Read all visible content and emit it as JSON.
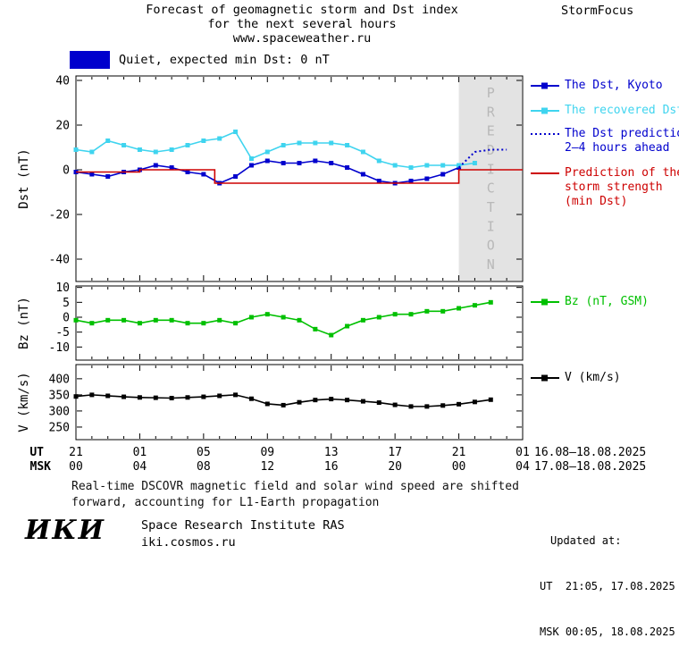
{
  "header": {
    "title_line1": "Forecast of geomagnetic storm and Dst index",
    "title_line2": "for the next several hours",
    "title_line3": "www.spaceweather.ru",
    "brand": "StormFocus"
  },
  "status": {
    "label": "Quiet, expected min Dst: 0 nT",
    "color": "#0000cd"
  },
  "chart_data": {
    "type": "line",
    "title": "Forecast of geomagnetic storm and Dst index for the next several hours",
    "x_hours_range": [
      0,
      28
    ],
    "x_major_hours": [
      0,
      4,
      8,
      12,
      16,
      20,
      24,
      28
    ],
    "x_axis": {
      "ut_label": "UT",
      "msk_label": "MSK",
      "ut_ticks": [
        "21",
        "01",
        "05",
        "09",
        "13",
        "17",
        "21",
        "01"
      ],
      "msk_ticks": [
        "00",
        "04",
        "08",
        "12",
        "16",
        "20",
        "00",
        "04"
      ],
      "ut_date_range": "16.08–18.08.2025",
      "msk_date_range": "17.08–18.08.2025"
    },
    "prediction_region": {
      "start_hour": 24,
      "end_hour": 28,
      "label": "PREDICTION",
      "fill": "#e3e3e3",
      "text_color": "#b8b8b8"
    },
    "panels": [
      {
        "id": "dst",
        "ylabel": "Dst (nT)",
        "ylim": [
          -50,
          42
        ],
        "yticks": [
          40,
          20,
          0,
          -20,
          -40
        ]
      },
      {
        "id": "bz",
        "ylabel": "Bz (nT)",
        "ylim": [
          -14.4,
          10.5
        ],
        "yticks": [
          10,
          5,
          0,
          -5,
          -10
        ]
      },
      {
        "id": "v",
        "ylabel": "V (km/s)",
        "ylim": [
          211,
          444
        ],
        "yticks": [
          400,
          350,
          300,
          250
        ]
      }
    ],
    "series": [
      {
        "id": "dst-kyoto",
        "panel": "dst",
        "label": "The Dst, Kyoto",
        "color": "#0000cd",
        "marker": true,
        "line": "solid",
        "x": [
          0,
          1,
          2,
          3,
          4,
          5,
          6,
          7,
          8,
          9,
          10,
          11,
          12,
          13,
          14,
          15,
          16,
          17,
          18,
          19,
          20,
          21,
          22,
          23,
          24
        ],
        "y": [
          -1,
          -2,
          -3,
          -1,
          0,
          2,
          1,
          -1,
          -2,
          -6,
          -3,
          2,
          4,
          3,
          3,
          4,
          3,
          1,
          -2,
          -5,
          -6,
          -5,
          -4,
          -2,
          1
        ]
      },
      {
        "id": "recovered-dst",
        "panel": "dst",
        "label": "The recovered Dst",
        "color": "#3fd4ef",
        "marker": true,
        "line": "solid",
        "x": [
          0,
          1,
          2,
          3,
          4,
          5,
          6,
          7,
          8,
          9,
          10,
          11,
          12,
          13,
          14,
          15,
          16,
          17,
          18,
          19,
          20,
          21,
          22,
          23,
          24,
          25
        ],
        "y": [
          9,
          8,
          13,
          11,
          9,
          8,
          9,
          11,
          13,
          14,
          17,
          5,
          8,
          11,
          12,
          12,
          12,
          11,
          8,
          4,
          2,
          1,
          2,
          2,
          2,
          3
        ]
      },
      {
        "id": "dst-prediction",
        "panel": "dst",
        "label": "The Dst prediction 2–4 hours ahead",
        "color": "#0000cd",
        "marker": false,
        "line": "dotted",
        "x": [
          24,
          25,
          26,
          27
        ],
        "y": [
          1,
          8,
          9,
          9
        ]
      },
      {
        "id": "storm-strength",
        "panel": "dst",
        "label": "Prediction of the storm strength (min Dst)",
        "color": "#cd0000",
        "marker": false,
        "line": "solid",
        "x": [
          0,
          4,
          4,
          8.7,
          8.7,
          24,
          24,
          28
        ],
        "y": [
          -1,
          -1,
          0,
          0,
          -6,
          -6,
          0,
          0
        ]
      },
      {
        "id": "bz-gsm",
        "panel": "bz",
        "label": "Bz (nT, GSM)",
        "color": "#00c000",
        "marker": true,
        "line": "solid",
        "x": [
          0,
          1,
          2,
          3,
          4,
          5,
          6,
          7,
          8,
          9,
          10,
          11,
          12,
          13,
          14,
          15,
          16,
          17,
          18,
          19,
          20,
          21,
          22,
          23,
          24,
          25,
          26
        ],
        "y": [
          -1,
          -2,
          -1,
          -1,
          -2,
          -1,
          -1,
          -2,
          -2,
          -1,
          -2,
          0,
          1,
          0,
          -1,
          -4,
          -6,
          -3,
          -1,
          0,
          1,
          1,
          2,
          2,
          3,
          4,
          5
        ]
      },
      {
        "id": "v-speed",
        "panel": "v",
        "label": "V (km/s)",
        "color": "#000000",
        "marker": true,
        "line": "solid",
        "x": [
          0,
          1,
          2,
          3,
          4,
          5,
          6,
          7,
          8,
          9,
          10,
          11,
          12,
          13,
          14,
          15,
          16,
          17,
          18,
          19,
          20,
          21,
          22,
          23,
          24,
          25,
          26
        ],
        "y": [
          345,
          350,
          347,
          344,
          342,
          341,
          340,
          342,
          344,
          347,
          350,
          338,
          322,
          318,
          327,
          334,
          337,
          334,
          330,
          326,
          319,
          314,
          314,
          317,
          321,
          328,
          335
        ]
      }
    ]
  },
  "legend": {
    "items": [
      {
        "id": "dst-kyoto",
        "marker": "square-line",
        "color": "#0000cd",
        "lines": [
          "The Dst, Kyoto"
        ]
      },
      {
        "id": "recovered-dst",
        "marker": "square-line",
        "color": "#3fd4ef",
        "lines": [
          "The recovered Dst"
        ]
      },
      {
        "id": "dst-prediction",
        "marker": "dotted",
        "color": "#0000cd",
        "lines": [
          "The Dst prediction",
          "2–4 hours ahead"
        ]
      },
      {
        "id": "storm-strength",
        "marker": "line",
        "color": "#cd0000",
        "lines": [
          "Prediction of the",
          "storm strength",
          "(min Dst)"
        ]
      },
      {
        "id": "bz-gsm",
        "marker": "square-line",
        "color": "#00c000",
        "lines": [
          "Bz (nT, GSM)"
        ]
      },
      {
        "id": "v-speed",
        "marker": "square-line",
        "color": "#000000",
        "lines": [
          "V (km/s)"
        ]
      }
    ]
  },
  "footer": {
    "note_line1": "Real-time DSCOVR magnetic field and solar wind speed are shifted",
    "note_line2": "forward, accounting for L1-Earth propagation"
  },
  "updated": {
    "heading": "Updated at:",
    "ut": "UT  21:05, 17.08.2025",
    "msk": "MSK 00:05, 18.08.2025"
  },
  "institute": {
    "logo": "ИКИ",
    "name": "Space Research Institute RAS",
    "site": "iki.cosmos.ru"
  }
}
